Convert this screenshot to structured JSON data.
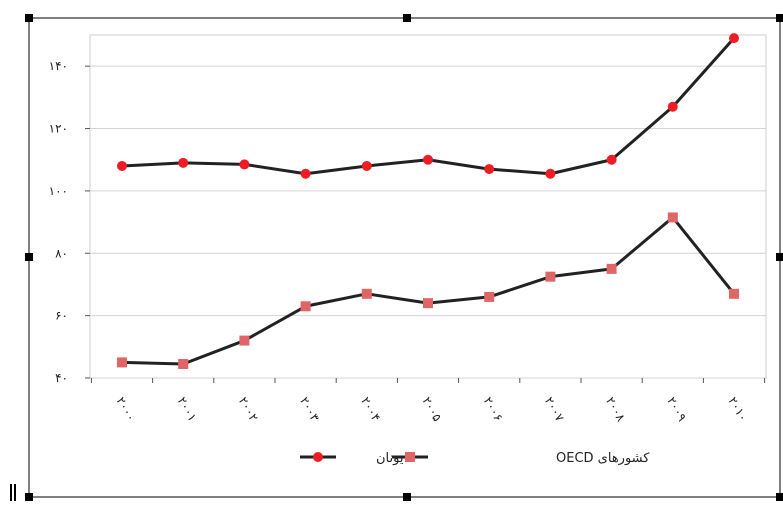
{
  "chart_data": {
    "type": "line",
    "title": "",
    "xlabel": "",
    "ylabel": "",
    "categories": [
      "۲۰۰۰",
      "۲۰۰۱",
      "۲۰۰۲",
      "۲۰۰۳",
      "۲۰۰۴",
      "۲۰۰۵",
      "۲۰۰۶",
      "۲۰۰۷",
      "۲۰۰۸",
      "۲۰۰۹",
      "۲۰۱۰"
    ],
    "yticks": [
      40,
      60,
      80,
      100,
      120,
      140
    ],
    "ytick_labels": [
      "۴۰",
      "۶۰",
      "۸۰",
      "۱۰۰",
      "۱۲۰",
      "۱۴۰"
    ],
    "ylim": [
      40,
      150
    ],
    "grid": "horizontal",
    "legend_position": "bottom",
    "series": [
      {
        "name": "یونان",
        "marker": "circle",
        "line_color": "#222222",
        "marker_color": "#ee1c25",
        "values": [
          108,
          109,
          108.5,
          105.5,
          108,
          110,
          107,
          105.5,
          110,
          127,
          149
        ]
      },
      {
        "name": "کشورهای OECD",
        "marker": "square",
        "line_color": "#222222",
        "marker_color": "#e06666",
        "values": [
          45,
          44.5,
          52,
          63,
          67,
          64,
          66,
          72.5,
          75,
          91.5,
          67
        ]
      }
    ]
  }
}
